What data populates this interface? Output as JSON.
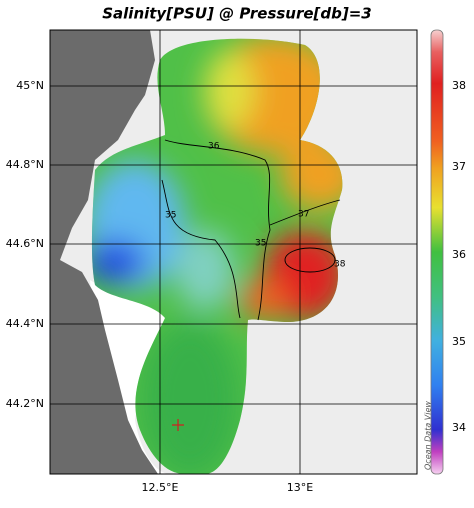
{
  "map": {
    "title": "Salinity[PSU] @ Pressure[db]=3",
    "lat_labels": [
      "45°N",
      "44.8°N",
      "44.6°N",
      "44.4°N",
      "44.2°N"
    ],
    "lon_labels": [
      "12.5°E",
      "13°E"
    ],
    "colorbar": {
      "ticks": [
        38,
        37,
        36,
        35,
        34
      ]
    },
    "contour_labels": [
      "36",
      "35",
      "35",
      "37",
      "38"
    ],
    "watermark": "Ocean Data View"
  }
}
